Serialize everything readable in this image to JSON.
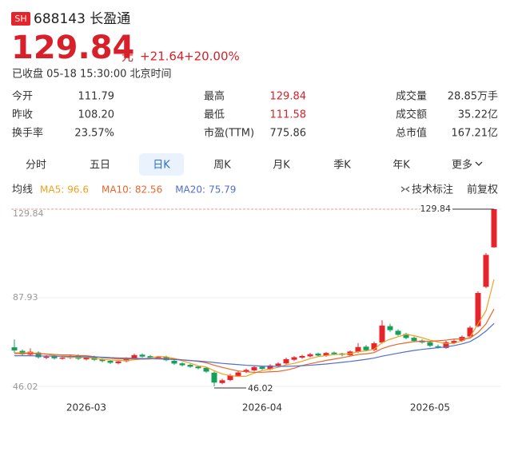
{
  "header": {
    "badge": "SH",
    "code_name": "688143 长盈通",
    "price": "129.84",
    "unit": "元",
    "change": "+21.64",
    "change_pct": "+20.00%",
    "status": "已收盘 05-18 15:30:00 北京时间"
  },
  "stats": [
    [
      "今开",
      "111.79"
    ],
    [
      "最高",
      "129.84"
    ],
    [
      "成交量",
      "28.85万手"
    ],
    [
      "昨收",
      "108.20"
    ],
    [
      "最低",
      "111.58"
    ],
    [
      "成交额",
      "35.22亿"
    ],
    [
      "换手率",
      "23.57%"
    ],
    [
      "市盈(TTM)",
      "775.86"
    ],
    [
      "总市值",
      "167.21亿"
    ]
  ],
  "tabs": [
    "分时",
    "五日",
    "日K",
    "周K",
    "月K",
    "季K",
    "年K",
    "更多"
  ],
  "legend_label": "均线",
  "tools": [
    "技术标注",
    "前复权"
  ],
  "chart_data": {
    "type": "candlestick",
    "categories": [
      null,
      null,
      null,
      null,
      null,
      null,
      null,
      null,
      null,
      "2026-03",
      null,
      null,
      null,
      null,
      null,
      null,
      null,
      null,
      null,
      null,
      null,
      null,
      null,
      null,
      null,
      null,
      null,
      null,
      null,
      null,
      null,
      "2026-04",
      null,
      null,
      null,
      null,
      null,
      null,
      null,
      null,
      null,
      null,
      null,
      null,
      null,
      null,
      null,
      null,
      null,
      null,
      null,
      null,
      "2026-05",
      null,
      null,
      null,
      null,
      null,
      null,
      null,
      null
    ],
    "open": [
      64.5,
      62.8,
      61.0,
      62.0,
      59.5,
      60.3,
      59.1,
      59.5,
      60.6,
      58.8,
      59.9,
      58.7,
      58.1,
      57.0,
      57.9,
      59.2,
      61.0,
      60.3,
      59.4,
      60.0,
      58.1,
      56.9,
      56.2,
      55.4,
      54.8,
      52.5,
      47.6,
      49.0,
      51.0,
      52.9,
      53.6,
      55.3,
      54.1,
      55.8,
      56.9,
      58.6,
      59.6,
      60.2,
      61.5,
      60.5,
      62.0,
      61.6,
      60.8,
      62.3,
      64.8,
      63.2,
      66.8,
      74.5,
      72.3,
      70.8,
      69.0,
      67.7,
      66.9,
      65.0,
      64.2,
      66.6,
      67.6,
      69.6,
      74.5,
      93.1,
      111.79
    ],
    "high": [
      68.2,
      63.5,
      64.0,
      62.6,
      60.8,
      60.9,
      60.2,
      60.9,
      61.2,
      60.2,
      60.5,
      59.2,
      58.6,
      58.3,
      59.8,
      61.5,
      61.6,
      60.9,
      60.4,
      60.5,
      58.6,
      57.4,
      56.7,
      55.9,
      55.3,
      53.1,
      49.6,
      51.9,
      53.2,
      54.4,
      55.7,
      55.9,
      56.5,
      57.4,
      59.6,
      60.3,
      61.0,
      61.9,
      62.0,
      62.3,
      62.5,
      61.9,
      63.0,
      66.5,
      65.6,
      67.2,
      77.3,
      75.6,
      73.0,
      71.4,
      69.6,
      68.3,
      67.5,
      65.8,
      67.6,
      68.4,
      70.1,
      74.6,
      91.0,
      109.1,
      129.84
    ],
    "low": [
      61.8,
      60.5,
      60.3,
      59.2,
      58.9,
      58.7,
      58.6,
      59.0,
      58.5,
      58.3,
      58.0,
      57.4,
      56.6,
      56.4,
      57.4,
      58.8,
      59.6,
      59.1,
      58.9,
      57.9,
      56.2,
      55.4,
      54.8,
      54.1,
      52.4,
      46.02,
      47.0,
      48.5,
      50.5,
      52.3,
      53.1,
      53.8,
      53.6,
      55.2,
      56.4,
      58.0,
      59.0,
      59.7,
      60.0,
      60.0,
      60.7,
      60.2,
      60.3,
      61.8,
      62.5,
      62.7,
      66.2,
      71.8,
      69.9,
      68.3,
      66.9,
      66.2,
      64.6,
      63.9,
      63.8,
      66.0,
      67.0,
      69.1,
      73.9,
      92.4,
      111.58
    ],
    "close": [
      63.0,
      61.2,
      62.4,
      59.8,
      60.1,
      59.3,
      59.6,
      60.4,
      59.1,
      59.7,
      58.6,
      58.0,
      57.2,
      57.8,
      59.3,
      60.8,
      60.1,
      59.6,
      59.9,
      58.4,
      56.8,
      56.0,
      55.3,
      54.6,
      53.0,
      47.8,
      48.9,
      51.2,
      52.6,
      53.8,
      55.1,
      54.3,
      55.9,
      56.8,
      58.9,
      59.8,
      60.4,
      61.2,
      60.6,
      61.8,
      61.3,
      60.9,
      62.5,
      64.6,
      63.1,
      66.4,
      74.8,
      72.6,
      70.4,
      68.9,
      67.5,
      66.8,
      65.2,
      64.4,
      66.9,
      67.5,
      69.4,
      73.8,
      90.2,
      108.2,
      129.84
    ],
    "up_color": "#e5242b",
    "down_color": "#15a05a",
    "series": [
      {
        "name": "MA5:",
        "color": "#f0a020",
        "values": [
          62.0,
          61.8,
          62.0,
          61.5,
          61.3,
          60.6,
          60.0,
          59.8,
          59.7,
          59.7,
          59.3,
          58.8,
          58.5,
          58.3,
          58.2,
          58.6,
          59.0,
          59.5,
          60.2,
          60.0,
          59.2,
          58.1,
          57.0,
          55.7,
          55.2,
          53.4,
          51.9,
          51.1,
          50.7,
          50.8,
          52.3,
          53.5,
          54.2,
          55.0,
          56.2,
          56.9,
          57.9,
          59.1,
          60.1,
          60.6,
          61.1,
          61.2,
          61.5,
          62.4,
          62.8,
          63.6,
          66.7,
          68.3,
          69.5,
          70.6,
          70.0,
          69.0,
          67.9,
          67.0,
          66.2,
          66.4,
          67.5,
          69.3,
          75.6,
          81.8,
          96.6
        ]
      },
      {
        "name": "MA10:",
        "color": "#e8662a",
        "values": [
          61.5,
          61.6,
          61.6,
          61.5,
          61.3,
          61.1,
          60.9,
          60.9,
          60.6,
          60.5,
          60.1,
          59.6,
          59.3,
          59.0,
          59.0,
          59.0,
          58.9,
          59.0,
          59.4,
          59.1,
          59.0,
          58.6,
          58.3,
          57.8,
          57.2,
          56.0,
          55.0,
          54.1,
          53.3,
          52.9,
          52.7,
          52.7,
          52.9,
          53.1,
          53.7,
          54.6,
          55.9,
          56.7,
          57.5,
          58.3,
          58.9,
          59.6,
          60.3,
          61.1,
          61.4,
          62.0,
          63.9,
          65.1,
          66.0,
          66.6,
          67.2,
          67.3,
          67.3,
          67.6,
          67.9,
          68.4,
          68.5,
          68.8,
          71.5,
          75.6,
          82.56
        ]
      },
      {
        "name": "MA20:",
        "color": "#4f6fd0",
        "values": [
          60.5,
          60.5,
          60.5,
          60.4,
          60.4,
          60.3,
          60.3,
          60.2,
          60.1,
          60.0,
          59.9,
          59.8,
          59.6,
          59.5,
          59.4,
          59.3,
          59.2,
          59.1,
          59.0,
          58.9,
          58.7,
          58.5,
          58.2,
          58.0,
          57.7,
          57.3,
          56.9,
          56.6,
          56.3,
          56.0,
          55.8,
          55.6,
          55.5,
          55.5,
          55.5,
          55.6,
          55.8,
          56.0,
          56.3,
          56.6,
          57.0,
          57.4,
          57.8,
          58.3,
          58.8,
          59.4,
          60.3,
          61.0,
          61.7,
          62.4,
          63.0,
          63.5,
          63.9,
          64.3,
          64.7,
          65.3,
          66.1,
          67.2,
          69.4,
          72.2,
          75.79
        ]
      }
    ],
    "ylim": [
      46.02,
      129.84
    ],
    "yticks": [
      46.02,
      87.93,
      129.84
    ],
    "grid": true
  }
}
